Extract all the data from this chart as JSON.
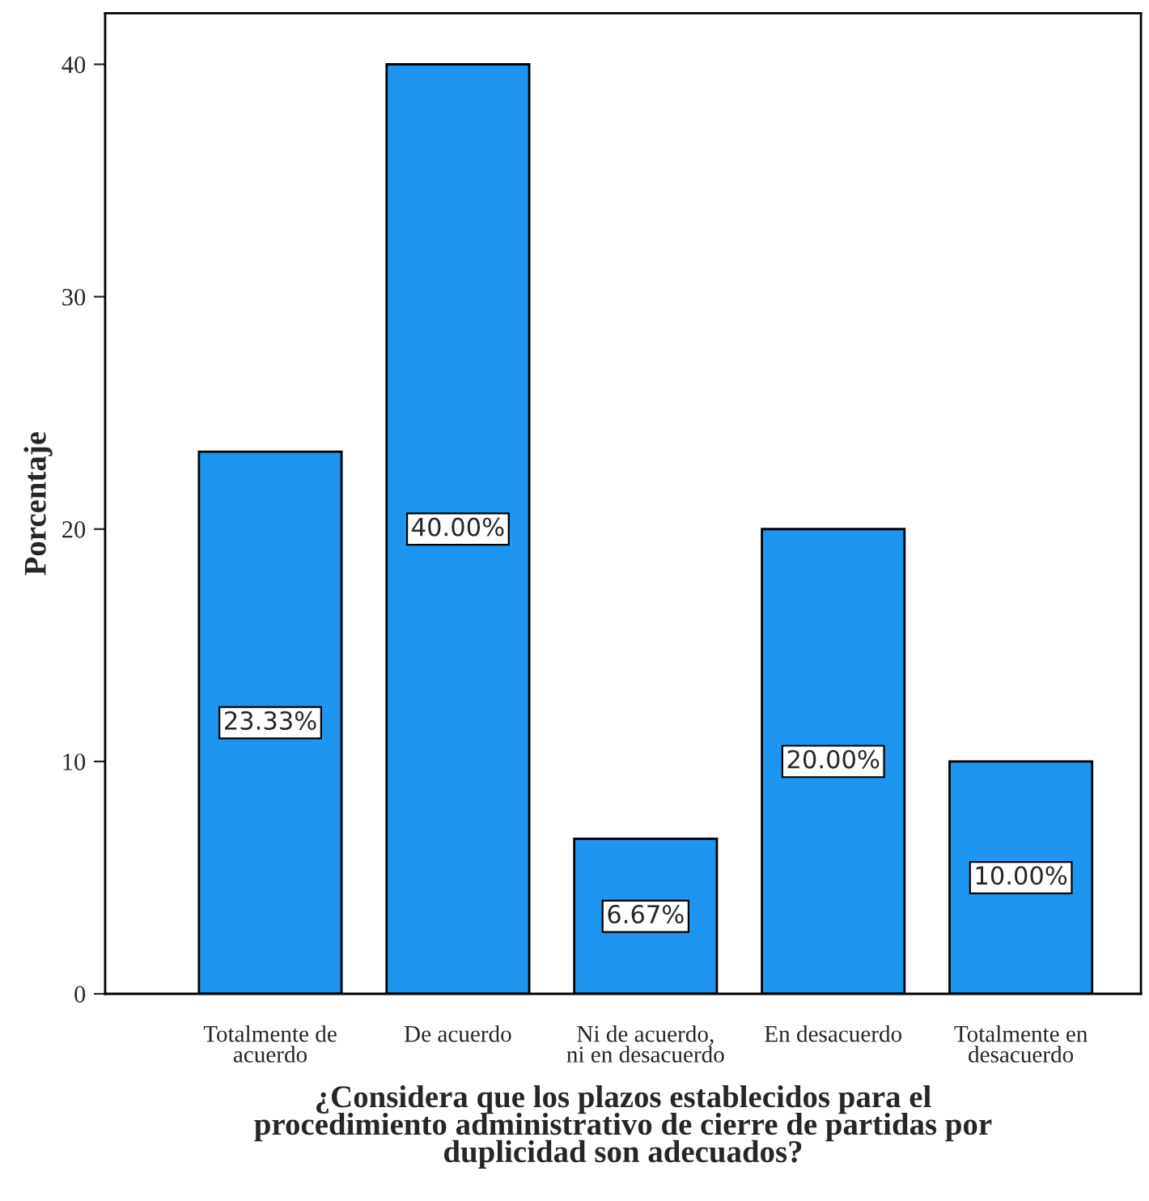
{
  "chart_data": {
    "type": "bar",
    "xlabel": "¿Considera que los plazos establecidos para el\nprocedimiento administrativo de cierre de partidas por\nduplicidad son adecuados?",
    "ylabel": "Porcentaje",
    "categories": [
      "Totalmente de\nacuerdo",
      "De acuerdo",
      "Ni de acuerdo,\nni en desacuerdo",
      "En desacuerdo",
      "Totalmente en\ndesacuerdo"
    ],
    "values": [
      23.33,
      40.0,
      6.67,
      20.0,
      10.0
    ],
    "value_labels": [
      "23.33%",
      "40.00%",
      "6.67%",
      "20.00%",
      "10.00%"
    ],
    "color": "#1e96f0",
    "ylim": [
      0,
      42.2
    ],
    "yticks": [
      0,
      10,
      20,
      30,
      40
    ],
    "grid": false,
    "legend": false
  }
}
